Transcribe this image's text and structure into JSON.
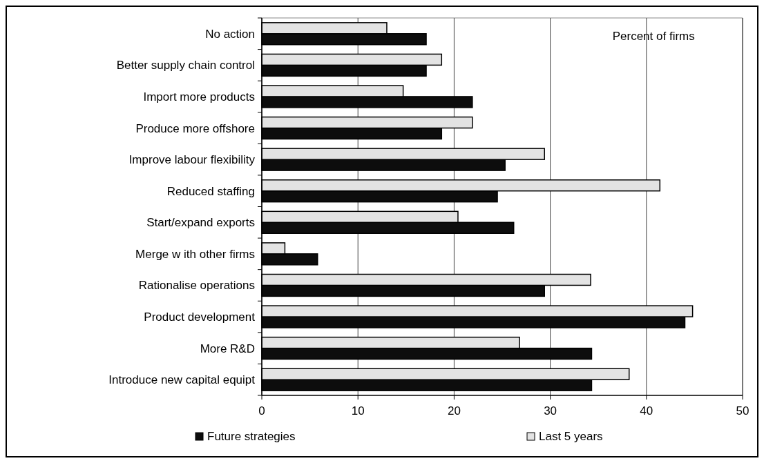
{
  "chart_data": {
    "type": "bar",
    "orientation": "horizontal",
    "categories": [
      "No action",
      "Better supply chain control",
      "Import more products",
      "Produce more offshore",
      "Improve labour flexibility",
      "Reduced staffing",
      "Start/expand exports",
      "Merge w ith other firms",
      "Rationalise operations",
      "Product development",
      "More R&D",
      "Introduce new capital equipt"
    ],
    "series": [
      {
        "name": "Future strategies",
        "color": "#0d0d0d",
        "values": [
          17.1,
          17.1,
          21.9,
          18.7,
          25.3,
          24.5,
          26.2,
          5.8,
          29.4,
          44.0,
          34.3,
          34.3
        ]
      },
      {
        "name": "Last 5 years",
        "color": "#e3e3e3",
        "values": [
          13.0,
          18.7,
          14.7,
          21.9,
          29.4,
          41.4,
          20.4,
          2.4,
          34.2,
          44.8,
          26.8,
          38.2
        ]
      }
    ],
    "xlim": [
      0,
      50
    ],
    "xticks": [
      0,
      10,
      20,
      30,
      40,
      50
    ],
    "grid": "x",
    "legend": "bottom",
    "annotations": [
      "Percent of firms"
    ]
  }
}
